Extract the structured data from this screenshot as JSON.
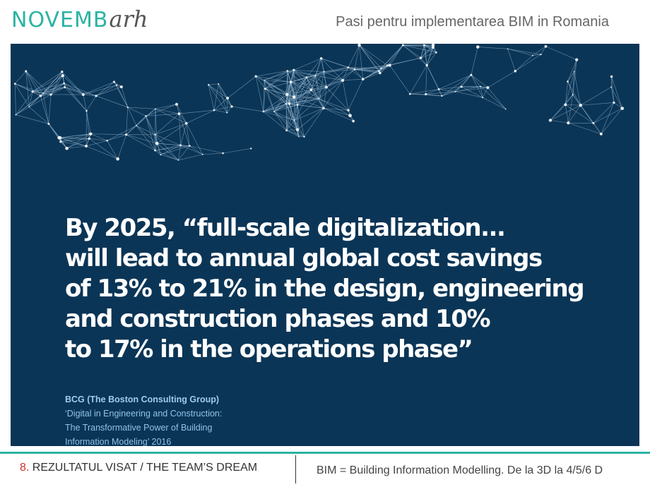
{
  "header": {
    "logo_main": "NOVEMB",
    "logo_script": "arh",
    "title": "Pasi pentru implementarea BIM in Romania"
  },
  "banner": {
    "background_color": "#0b3556",
    "quote_lines": [
      "By 2025, “full-scale digitalization...",
      "will lead to annual global cost savings",
      "of 13% to 21% in the design, engineering",
      "and construction phases and 10%",
      "to 17% in the operations phase”"
    ],
    "source_org": "BCG (The Boston Consulting Group)",
    "source_lines": [
      "‘Digital in Engineering and Construction:",
      "The Transformative Power of Building",
      "Information Modeling’ 2016"
    ]
  },
  "footer": {
    "section_number": "8.",
    "section_title": " REZULTATUL VISAT / THE TEAM’S DREAM",
    "right_text": "BIM = Building Information Modelling. De la 3D la 4/5/6 D",
    "accent_color": "#2bb3a3"
  }
}
